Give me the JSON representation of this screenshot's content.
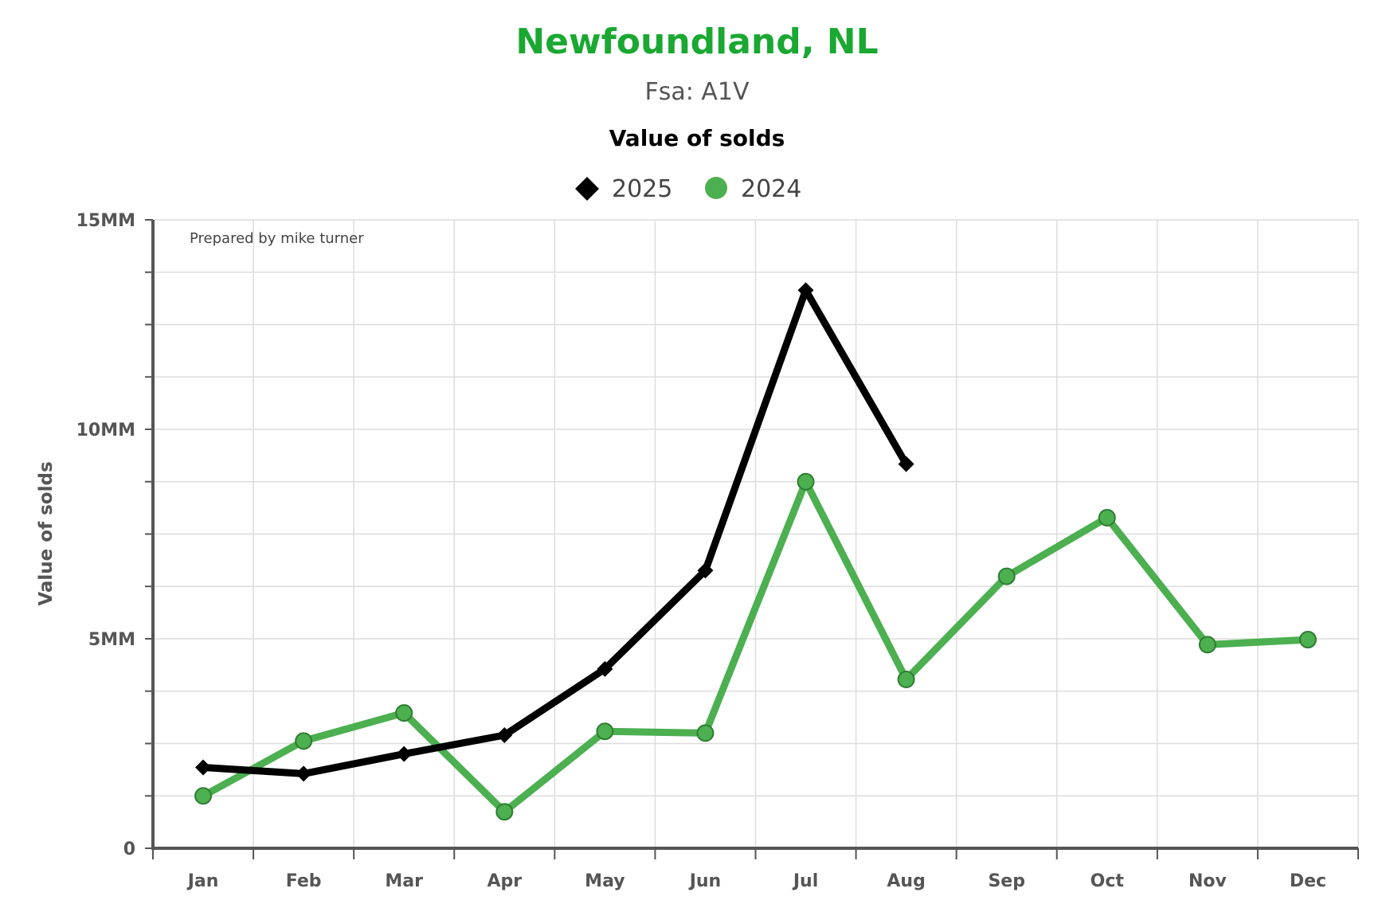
{
  "chart_data": {
    "type": "line",
    "title": "Newfoundland, NL",
    "subtitle": "Fsa: A1V",
    "chart_heading": "Value of solds",
    "ylabel": "Value of solds",
    "credit": "Prepared by mike turner",
    "categories": [
      "Jan",
      "Feb",
      "Mar",
      "Apr",
      "May",
      "Jun",
      "Jul",
      "Aug",
      "Sep",
      "Oct",
      "Nov",
      "Dec"
    ],
    "ylim": [
      0,
      15000000
    ],
    "yticks": [
      {
        "value": 0,
        "label": "0"
      },
      {
        "value": 5000000,
        "label": "5MM"
      },
      {
        "value": 10000000,
        "label": "10MM"
      },
      {
        "value": 15000000,
        "label": "15MM"
      }
    ],
    "grid": true,
    "legend_position": "top-center",
    "series": [
      {
        "name": "2025",
        "marker": "diamond",
        "color": "#000000",
        "values": [
          1930000,
          1780000,
          2250000,
          2700000,
          4280000,
          6630000,
          13320000,
          9170000,
          null,
          null,
          null,
          null
        ]
      },
      {
        "name": "2024",
        "marker": "circle",
        "color": "#4caf50",
        "values": [
          1250000,
          2560000,
          3230000,
          870000,
          2790000,
          2750000,
          8750000,
          4030000,
          6490000,
          7890000,
          4860000,
          4980000
        ]
      }
    ]
  }
}
